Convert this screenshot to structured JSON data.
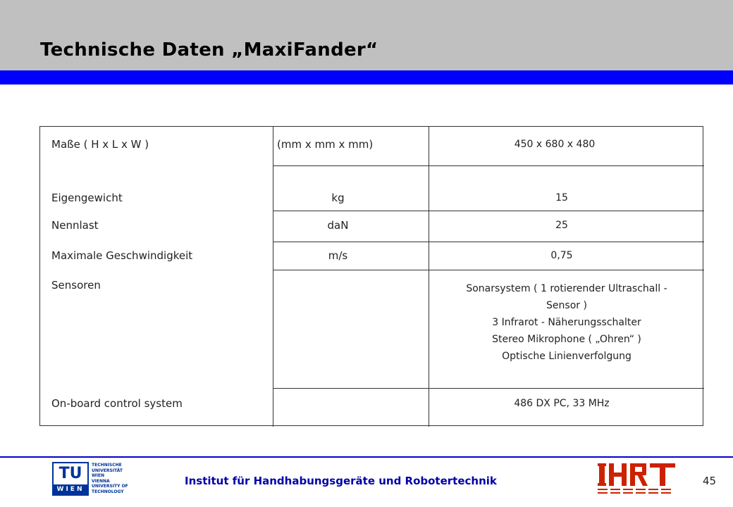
{
  "slide": {
    "title": "Technische Daten „MaxiFander“",
    "page_number": "45"
  },
  "table": {
    "rows": [
      {
        "label": "Maße ( H x L x W )",
        "unit": "(mm x mm x mm)",
        "value": "450 x 680 x 480"
      },
      {
        "label": "Eigengewicht",
        "unit": "kg",
        "value": "15"
      },
      {
        "label": "Nennlast",
        "unit": "daN",
        "value": "25"
      },
      {
        "label": "Maximale Geschwindigkeit",
        "unit": "m/s",
        "value": "0,75"
      },
      {
        "label": "Sensoren",
        "unit": "",
        "value_lines": [
          "Sonarsystem ( 1 rotierender Ultraschall -",
          "Sensor )",
          "3 Infrarot - Näherungsschalter",
          "Stereo Mikrophone ( „Ohren“ )",
          "Optische Linienverfolgung"
        ]
      },
      {
        "label": "On-board control system",
        "unit": "",
        "value": "486 DX PC, 33 MHz"
      }
    ]
  },
  "footer": {
    "institute": "Institut für Handhabungsgeräte und Robotertechnik",
    "tu_logo": {
      "main": "TU",
      "sub": "WIEN"
    },
    "tu_text_lines": [
      "TECHNISCHE",
      "UNIVERSITÄT",
      "WIEN",
      "VIENNA",
      "UNIVERSITY OF",
      "TECHNOLOGY"
    ],
    "ihrt_logo_text": "IHRT"
  },
  "colors": {
    "header_band": "#c0c0c0",
    "accent_blue": "#0000ff",
    "institute_text": "#0000aa",
    "logo_red": "#cc2200",
    "tu_blue": "#003399"
  }
}
